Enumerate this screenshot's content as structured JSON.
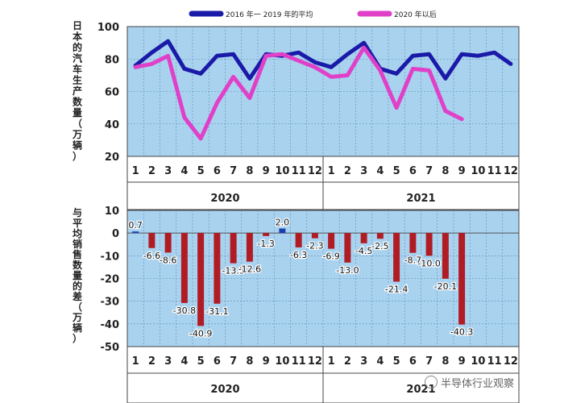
{
  "chart_data": [
    {
      "type": "line",
      "ylabel": "日本的汽车生产数量（万辆）",
      "ylim": [
        20,
        100
      ],
      "yticks": [
        20,
        40,
        60,
        80,
        100
      ],
      "years": [
        "2020",
        "2021"
      ],
      "months": [
        "1",
        "2",
        "3",
        "4",
        "5",
        "6",
        "7",
        "8",
        "9",
        "10",
        "11",
        "12"
      ],
      "grid": true,
      "legend": {
        "placement": "top"
      },
      "series": [
        {
          "name": "2016 年一 2019 年的平均",
          "color": "#1a1aa8",
          "values": [
            76,
            84,
            91,
            74,
            71,
            82,
            83,
            68,
            83,
            82,
            84,
            78,
            75,
            83,
            90,
            74,
            71,
            82,
            83,
            68,
            83,
            82,
            84,
            77
          ]
        },
        {
          "name": "2020 年以后",
          "color": "#e040c8",
          "values": [
            75,
            77,
            82,
            44,
            31,
            53,
            69,
            56,
            82,
            83,
            79,
            75,
            69,
            70,
            87,
            73,
            50,
            74,
            73,
            48,
            43,
            null,
            null,
            null
          ]
        }
      ]
    },
    {
      "type": "bar",
      "ylabel": "与平均销售数量的差（万辆）",
      "ylim": [
        -50,
        10
      ],
      "yticks": [
        10,
        0,
        -10,
        -20,
        -30,
        -40,
        -50
      ],
      "years": [
        "2020",
        "2021"
      ],
      "months": [
        "1",
        "2",
        "3",
        "4",
        "5",
        "6",
        "7",
        "8",
        "9",
        "10",
        "11",
        "12"
      ],
      "grid": true,
      "negative_color": "#b01c24",
      "positive_color": "#1a3fb0",
      "values": [
        0.7,
        -6.6,
        -8.6,
        -30.8,
        -40.9,
        -31.1,
        -13.3,
        -12.6,
        -1.3,
        2.0,
        -6.3,
        -2.3,
        -6.9,
        -13.0,
        -4.5,
        -2.5,
        -21.4,
        -8.7,
        -10.0,
        -20.1,
        -40.3,
        null,
        null,
        null
      ],
      "labels": [
        "0.7",
        "-6.6",
        "-8.6",
        "-30.8",
        "-40.9",
        "-31.1",
        "-13.3",
        "-12.6",
        "-1.3",
        "2.0",
        "-6.3",
        "-2.3",
        "-6.9",
        "-13.0",
        "-4.5",
        "-2.5",
        "-21.4",
        "-8.7",
        "-10.0",
        "-20.1",
        "-40.3",
        null,
        null,
        null
      ]
    }
  ],
  "watermark": "半导体行业观察"
}
